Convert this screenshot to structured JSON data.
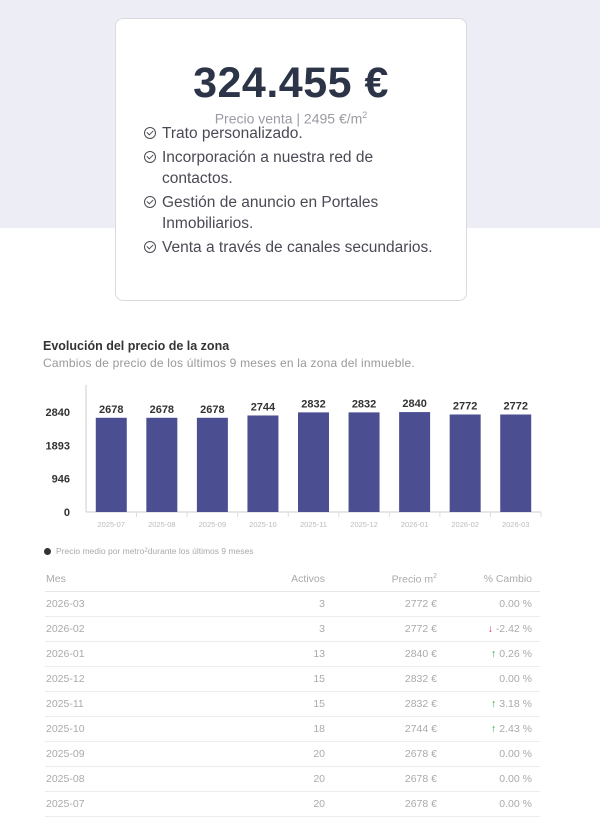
{
  "summary": {
    "price": "324.455 €",
    "subtitle": "Precio venta | 2495 €/m",
    "subtitle_sup": "2",
    "features": [
      "Trato personalizado.",
      "Incorporación a nuestra red de contactos.",
      "Gestión de anuncio en Portales Inmobiliarios.",
      "Venta a través de canales secundarios."
    ]
  },
  "chart_data": {
    "type": "bar",
    "title": "Evolución del precio de la zona",
    "subtitle": "Cambios de precio de los últimos 9 meses en la zona del inmueble.",
    "categories": [
      "2025-07",
      "2025-08",
      "2025-09",
      "2025-10",
      "2025-11",
      "2025-12",
      "2026-01",
      "2026-02",
      "2026-03"
    ],
    "values": [
      2678,
      2678,
      2678,
      2744,
      2832,
      2832,
      2840,
      2772,
      2772
    ],
    "yticks": [
      0,
      946,
      1893,
      2840
    ],
    "ylim": [
      0,
      3610
    ],
    "color": "#4b4f92",
    "legend": "Precio medio por metro",
    "legend_sup": "2",
    "legend_tail": " durante los últimos 9 meses"
  },
  "table": {
    "headers": [
      "Mes",
      "Activos",
      "Precio m",
      "% Cambio"
    ],
    "header_sup": "2",
    "rows": [
      {
        "mes": "2026-03",
        "activos": "3",
        "precio": "2772 €",
        "cambio": "0.00 %",
        "trend": ""
      },
      {
        "mes": "2026-02",
        "activos": "3",
        "precio": "2772 €",
        "cambio": "-2.42 %",
        "trend": "down"
      },
      {
        "mes": "2026-01",
        "activos": "13",
        "precio": "2840 €",
        "cambio": "0.26 %",
        "trend": "up"
      },
      {
        "mes": "2025-12",
        "activos": "15",
        "precio": "2832 €",
        "cambio": "0.00 %",
        "trend": ""
      },
      {
        "mes": "2025-11",
        "activos": "15",
        "precio": "2832 €",
        "cambio": "3.18 %",
        "trend": "up"
      },
      {
        "mes": "2025-10",
        "activos": "18",
        "precio": "2744 €",
        "cambio": "2.43 %",
        "trend": "up"
      },
      {
        "mes": "2025-09",
        "activos": "20",
        "precio": "2678 €",
        "cambio": "0.00 %",
        "trend": ""
      },
      {
        "mes": "2025-08",
        "activos": "20",
        "precio": "2678 €",
        "cambio": "0.00 %",
        "trend": ""
      },
      {
        "mes": "2025-07",
        "activos": "20",
        "precio": "2678 €",
        "cambio": "0.00 %",
        "trend": ""
      }
    ]
  }
}
